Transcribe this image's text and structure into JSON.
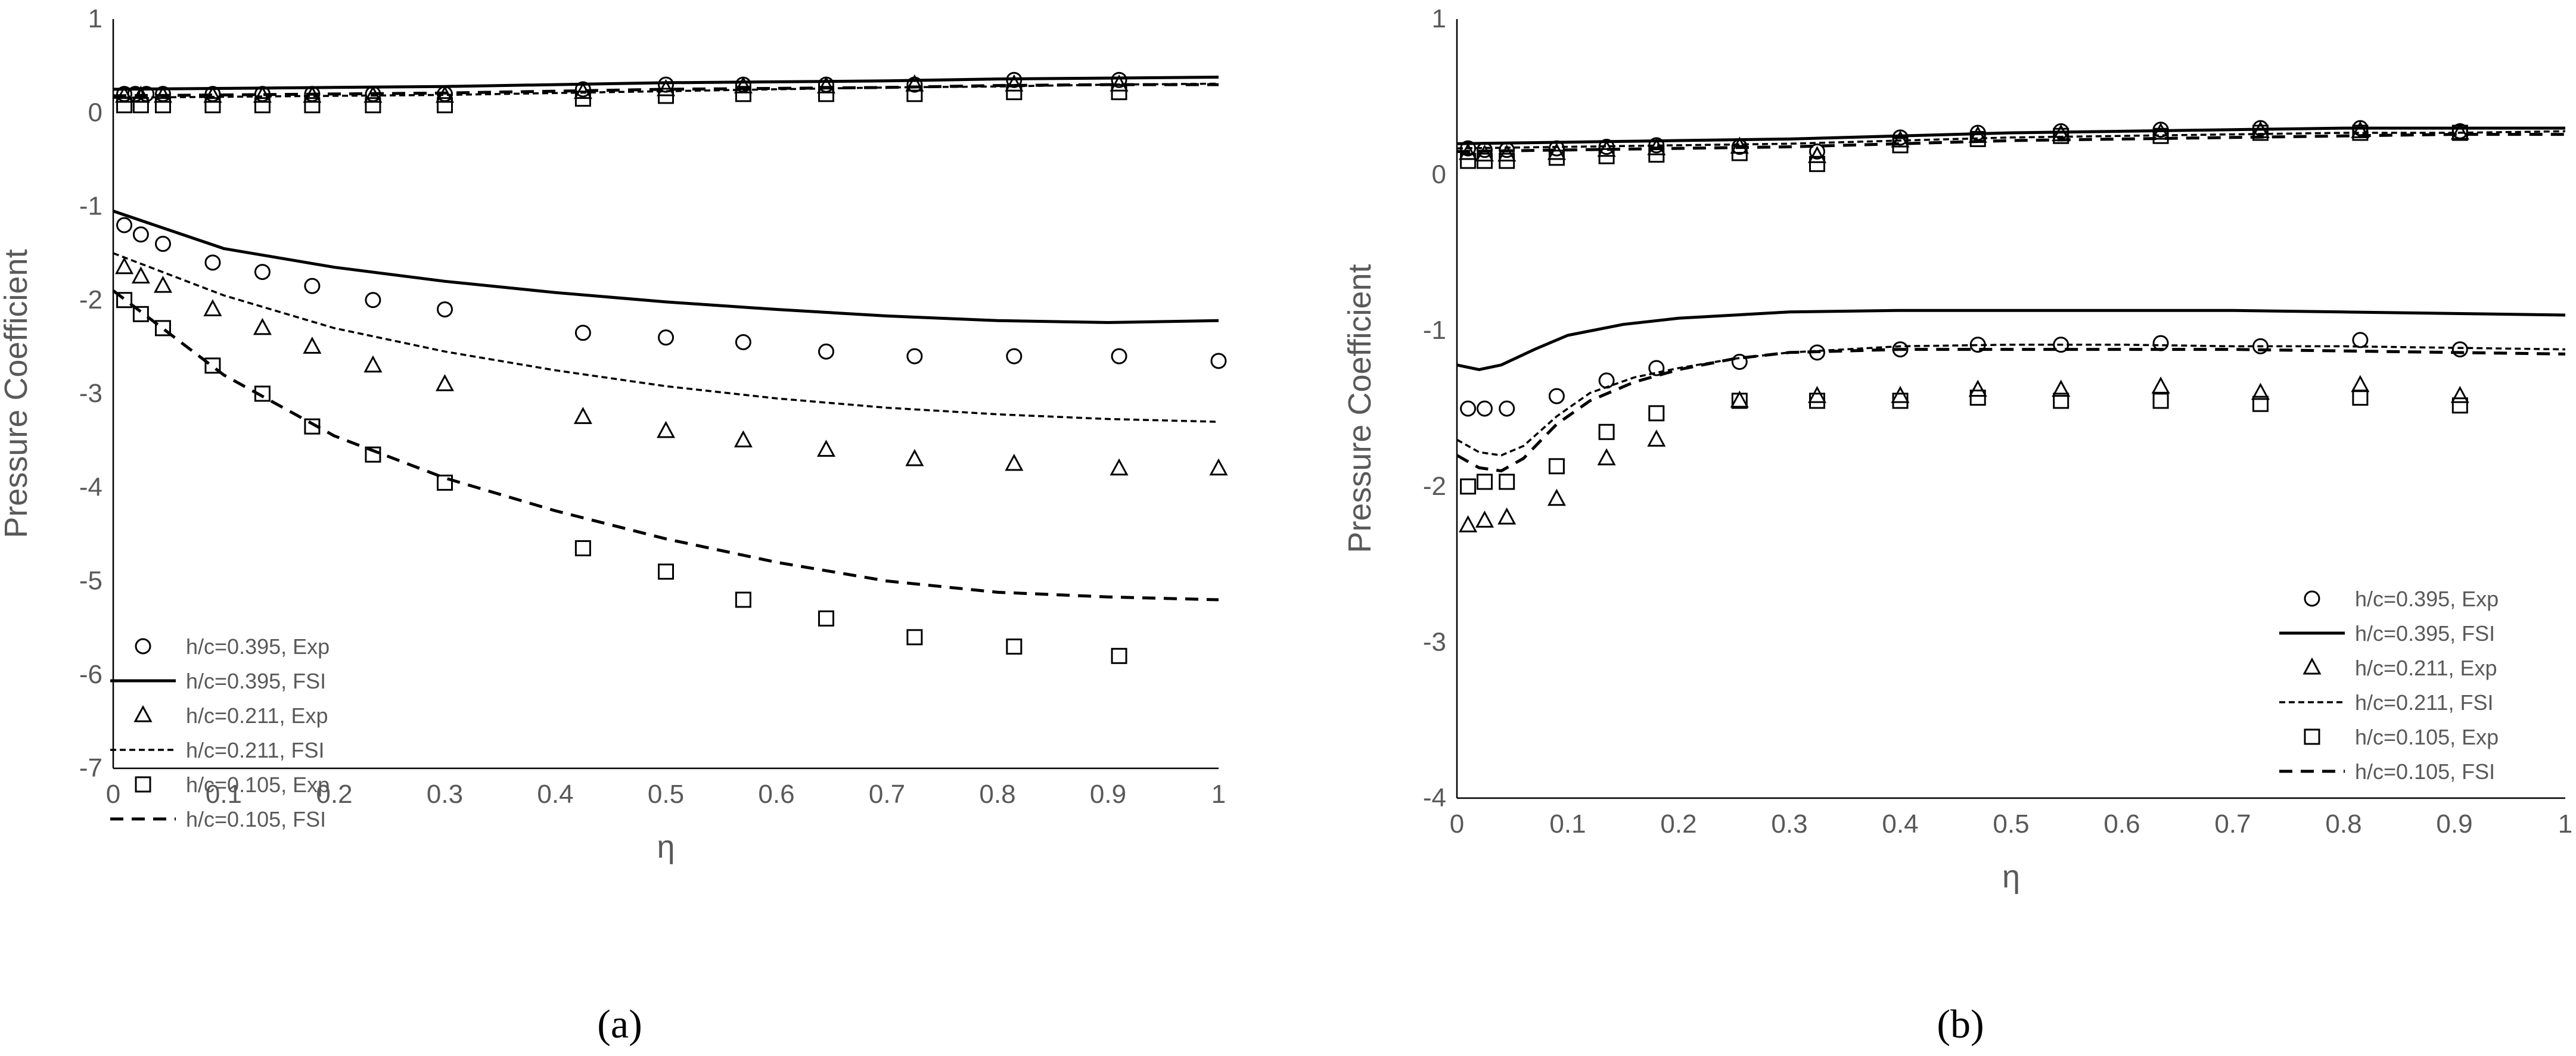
{
  "chart_data": [
    {
      "type": "line",
      "caption": "(a)",
      "xlabel": "η",
      "ylabel": "Pressure Coefficient",
      "xlim": [
        0,
        1
      ],
      "ylim": [
        -7,
        1
      ],
      "xticks": [
        0,
        0.1,
        0.2,
        0.3,
        0.4,
        0.5,
        0.6,
        0.7,
        0.8,
        0.9,
        1
      ],
      "yticks": [
        1,
        0,
        -1,
        -2,
        -3,
        -4,
        -5,
        -6,
        -7
      ],
      "legend_position": "bottom-left",
      "series": [
        {
          "name": "h/c=0.395, Exp",
          "kind": "scatter",
          "marker": "circle",
          "x": [
            0.01,
            0.02,
            0.03,
            0.045,
            0.09,
            0.135,
            0.18,
            0.235,
            0.3,
            0.425,
            0.5,
            0.57,
            0.645,
            0.725,
            0.815,
            0.91,
            1.0
          ],
          "y": [
            0.2,
            0.2,
            0.2,
            0.2,
            0.2,
            0.2,
            0.2,
            0.2,
            0.2,
            0.25,
            0.3,
            0.3,
            0.3,
            0.3,
            0.35,
            0.35,
            null
          ]
        },
        {
          "name": "h/c=0.395, Exp",
          "kind": "scatter",
          "marker": "circle",
          "legend": false,
          "x": [
            0.01,
            0.025,
            0.045,
            0.09,
            0.135,
            0.18,
            0.235,
            0.3,
            0.425,
            0.5,
            0.57,
            0.645,
            0.725,
            0.815,
            0.91,
            1.0
          ],
          "y": [
            -1.2,
            -1.3,
            -1.4,
            -1.6,
            -1.7,
            -1.85,
            -2.0,
            -2.1,
            -2.35,
            -2.4,
            -2.45,
            -2.55,
            -2.6,
            -2.6,
            -2.6,
            -2.65
          ]
        },
        {
          "name": "h/c=0.395, FSI",
          "kind": "line",
          "style": "solid",
          "x": [
            0,
            0.1,
            0.2,
            0.3,
            0.4,
            0.5,
            0.6,
            0.7,
            0.8,
            0.9,
            1.0
          ],
          "y": [
            -1.05,
            -1.45,
            -1.65,
            -1.8,
            -1.92,
            -2.02,
            -2.1,
            -2.17,
            -2.22,
            -2.24,
            -2.22
          ]
        },
        {
          "name": "h/c=0.395, FSI",
          "kind": "line",
          "style": "solid",
          "legend": false,
          "x": [
            0,
            0.1,
            0.2,
            0.3,
            0.4,
            0.5,
            0.6,
            0.7,
            0.8,
            0.9,
            1.0
          ],
          "y": [
            0.25,
            0.26,
            0.27,
            0.28,
            0.3,
            0.32,
            0.33,
            0.34,
            0.36,
            0.37,
            0.38
          ]
        },
        {
          "name": "h/c=0.211, Exp",
          "kind": "scatter",
          "marker": "triangle",
          "x": [
            0.01,
            0.025,
            0.045,
            0.09,
            0.135,
            0.18,
            0.235,
            0.3,
            0.425,
            0.5,
            0.57,
            0.645,
            0.725,
            0.815,
            0.91,
            1.0
          ],
          "y": [
            -1.65,
            -1.75,
            -1.85,
            -2.1,
            -2.3,
            -2.5,
            -2.7,
            -2.9,
            -3.25,
            -3.4,
            -3.5,
            -3.6,
            -3.7,
            -3.75,
            -3.8,
            -3.8
          ]
        },
        {
          "name": "h/c=0.211, Exp",
          "kind": "scatter",
          "marker": "triangle",
          "legend": false,
          "x": [
            0.01,
            0.025,
            0.045,
            0.09,
            0.135,
            0.18,
            0.235,
            0.3,
            0.425,
            0.5,
            0.57,
            0.645,
            0.725,
            0.815,
            0.91
          ],
          "y": [
            0.18,
            0.18,
            0.18,
            0.18,
            0.18,
            0.18,
            0.18,
            0.18,
            0.22,
            0.25,
            0.28,
            0.28,
            0.3,
            0.3,
            0.3
          ]
        },
        {
          "name": "h/c=0.211, FSI",
          "kind": "line",
          "style": "dotted",
          "x": [
            0,
            0.1,
            0.2,
            0.3,
            0.4,
            0.5,
            0.6,
            0.7,
            0.8,
            0.9,
            1.0
          ],
          "y": [
            -1.5,
            -1.95,
            -2.3,
            -2.55,
            -2.75,
            -2.92,
            -3.05,
            -3.15,
            -3.22,
            -3.27,
            -3.3
          ]
        },
        {
          "name": "h/c=0.211, FSI",
          "kind": "line",
          "style": "dotted",
          "legend": false,
          "x": [
            0,
            0.1,
            0.2,
            0.3,
            0.4,
            0.5,
            0.6,
            0.7,
            0.8,
            0.9,
            1.0
          ],
          "y": [
            0.16,
            0.17,
            0.18,
            0.19,
            0.21,
            0.23,
            0.25,
            0.27,
            0.28,
            0.3,
            0.31
          ]
        },
        {
          "name": "h/c=0.105, Exp",
          "kind": "scatter",
          "marker": "square",
          "x": [
            0.01,
            0.025,
            0.045,
            0.09,
            0.135,
            0.18,
            0.235,
            0.3,
            0.425,
            0.5,
            0.57,
            0.645,
            0.725,
            0.815,
            0.91
          ],
          "y": [
            -2.0,
            -2.15,
            -2.3,
            -2.7,
            -3.0,
            -3.35,
            -3.65,
            -3.95,
            -4.65,
            -4.9,
            -5.2,
            -5.4,
            -5.6,
            -5.7,
            -5.8
          ]
        },
        {
          "name": "h/c=0.105, Exp",
          "kind": "scatter",
          "marker": "square",
          "legend": false,
          "x": [
            0.01,
            0.025,
            0.045,
            0.09,
            0.135,
            0.18,
            0.235,
            0.3,
            0.425,
            0.5,
            0.57,
            0.645,
            0.725,
            0.815,
            0.91
          ],
          "y": [
            0.08,
            0.08,
            0.08,
            0.08,
            0.08,
            0.08,
            0.08,
            0.08,
            0.15,
            0.18,
            0.2,
            0.2,
            0.2,
            0.22,
            0.22
          ]
        },
        {
          "name": "h/c=0.105, FSI",
          "kind": "line",
          "style": "dashed",
          "x": [
            0,
            0.1,
            0.2,
            0.3,
            0.4,
            0.5,
            0.6,
            0.7,
            0.8,
            0.9,
            1.0
          ],
          "y": [
            -1.9,
            -2.8,
            -3.45,
            -3.9,
            -4.25,
            -4.55,
            -4.8,
            -5.0,
            -5.12,
            -5.17,
            -5.2
          ]
        },
        {
          "name": "h/c=0.105, FSI",
          "kind": "line",
          "style": "dashed",
          "legend": false,
          "x": [
            0,
            0.1,
            0.2,
            0.3,
            0.4,
            0.5,
            0.6,
            0.7,
            0.8,
            0.9,
            1.0
          ],
          "y": [
            0.18,
            0.19,
            0.2,
            0.21,
            0.23,
            0.25,
            0.26,
            0.27,
            0.29,
            0.3,
            0.3
          ]
        }
      ]
    },
    {
      "type": "line",
      "caption": "(b)",
      "xlabel": "η",
      "ylabel": "Pressure Coefficient",
      "xlim": [
        0,
        1
      ],
      "ylim": [
        -4,
        1
      ],
      "xticks": [
        0,
        0.1,
        0.2,
        0.3,
        0.4,
        0.5,
        0.6,
        0.7,
        0.8,
        0.9,
        1
      ],
      "yticks": [
        1,
        0,
        -1,
        -2,
        -3,
        -4
      ],
      "legend_position": "bottom-right",
      "series": [
        {
          "name": "h/c=0.395, Exp",
          "kind": "scatter",
          "marker": "circle",
          "x": [
            0.01,
            0.025,
            0.045,
            0.09,
            0.135,
            0.18,
            0.255,
            0.325,
            0.4,
            0.47,
            0.545,
            0.635,
            0.725,
            0.815,
            0.905
          ],
          "y": [
            -1.5,
            -1.5,
            -1.5,
            -1.42,
            -1.32,
            -1.24,
            -1.2,
            -1.14,
            -1.12,
            -1.09,
            -1.09,
            -1.08,
            -1.1,
            -1.06,
            -1.12
          ]
        },
        {
          "name": "h/c=0.395, Exp",
          "kind": "scatter",
          "marker": "circle",
          "legend": false,
          "x": [
            0.01,
            0.025,
            0.045,
            0.09,
            0.135,
            0.18,
            0.255,
            0.325,
            0.4,
            0.47,
            0.545,
            0.635,
            0.725,
            0.815,
            0.905
          ],
          "y": [
            0.17,
            0.16,
            0.16,
            0.17,
            0.18,
            0.19,
            0.18,
            0.15,
            0.24,
            0.27,
            0.28,
            0.29,
            0.3,
            0.3,
            0.28
          ]
        },
        {
          "name": "h/c=0.395, FSI",
          "kind": "line",
          "style": "solid",
          "x": [
            0,
            0.02,
            0.04,
            0.07,
            0.1,
            0.15,
            0.2,
            0.3,
            0.4,
            0.5,
            0.6,
            0.7,
            0.8,
            0.9,
            1.0
          ],
          "y": [
            -1.22,
            -1.25,
            -1.22,
            -1.12,
            -1.03,
            -0.96,
            -0.92,
            -0.88,
            -0.87,
            -0.87,
            -0.87,
            -0.87,
            -0.88,
            -0.89,
            -0.9
          ]
        },
        {
          "name": "h/c=0.395, FSI",
          "kind": "line",
          "style": "solid",
          "legend": false,
          "x": [
            0,
            0.1,
            0.2,
            0.3,
            0.4,
            0.5,
            0.6,
            0.7,
            0.8,
            0.9,
            1.0
          ],
          "y": [
            0.2,
            0.21,
            0.22,
            0.23,
            0.25,
            0.27,
            0.28,
            0.29,
            0.3,
            0.3,
            0.3
          ]
        },
        {
          "name": "h/c=0.211, Exp",
          "kind": "scatter",
          "marker": "triangle",
          "x": [
            0.01,
            0.025,
            0.045,
            0.09,
            0.135,
            0.18,
            0.255,
            0.325,
            0.4,
            0.47,
            0.545,
            0.635,
            0.725,
            0.815,
            0.905
          ],
          "y": [
            -2.25,
            -2.22,
            -2.2,
            -2.08,
            -1.82,
            -1.7,
            -1.45,
            -1.42,
            -1.42,
            -1.38,
            -1.38,
            -1.36,
            -1.4,
            -1.35,
            -1.42
          ]
        },
        {
          "name": "h/c=0.211, Exp",
          "kind": "scatter",
          "marker": "triangle",
          "legend": false,
          "x": [
            0.01,
            0.025,
            0.045,
            0.09,
            0.135,
            0.18,
            0.255,
            0.325,
            0.4,
            0.47,
            0.545,
            0.635,
            0.725,
            0.815,
            0.905
          ],
          "y": [
            0.14,
            0.13,
            0.13,
            0.14,
            0.16,
            0.17,
            0.18,
            0.12,
            0.22,
            0.25,
            0.26,
            0.27,
            0.28,
            0.28,
            0.27
          ]
        },
        {
          "name": "h/c=0.211, FSI",
          "kind": "line",
          "style": "dotted",
          "x": [
            0,
            0.02,
            0.04,
            0.06,
            0.09,
            0.12,
            0.16,
            0.2,
            0.25,
            0.3,
            0.4,
            0.5,
            0.6,
            0.7,
            0.8,
            0.9,
            1.0
          ],
          "y": [
            -1.7,
            -1.78,
            -1.8,
            -1.74,
            -1.55,
            -1.4,
            -1.3,
            -1.24,
            -1.18,
            -1.14,
            -1.1,
            -1.09,
            -1.09,
            -1.1,
            -1.1,
            -1.11,
            -1.12
          ]
        },
        {
          "name": "h/c=0.211, FSI",
          "kind": "line",
          "style": "dotted",
          "legend": false,
          "x": [
            0,
            0.1,
            0.2,
            0.3,
            0.4,
            0.5,
            0.6,
            0.7,
            0.8,
            0.9,
            1.0
          ],
          "y": [
            0.17,
            0.18,
            0.19,
            0.2,
            0.22,
            0.24,
            0.25,
            0.26,
            0.27,
            0.27,
            0.28
          ]
        },
        {
          "name": "h/c=0.105, Exp",
          "kind": "scatter",
          "marker": "square",
          "x": [
            0.01,
            0.025,
            0.045,
            0.09,
            0.135,
            0.18,
            0.255,
            0.325,
            0.4,
            0.47,
            0.545,
            0.635,
            0.725,
            0.815,
            0.905
          ],
          "y": [
            -2.0,
            -1.97,
            -1.97,
            -1.87,
            -1.65,
            -1.53,
            -1.45,
            -1.45,
            -1.45,
            -1.43,
            -1.45,
            -1.45,
            -1.47,
            -1.43,
            -1.48
          ]
        },
        {
          "name": "h/c=0.105, Exp",
          "kind": "scatter",
          "marker": "square",
          "legend": false,
          "x": [
            0.01,
            0.025,
            0.045,
            0.09,
            0.135,
            0.18,
            0.255,
            0.325,
            0.4,
            0.47,
            0.545,
            0.635,
            0.725,
            0.815,
            0.905
          ],
          "y": [
            0.09,
            0.09,
            0.09,
            0.11,
            0.12,
            0.13,
            0.14,
            0.07,
            0.19,
            0.23,
            0.25,
            0.25,
            0.27,
            0.27,
            0.27
          ]
        },
        {
          "name": "h/c=0.105, FSI",
          "kind": "line",
          "style": "dashed",
          "x": [
            0,
            0.02,
            0.04,
            0.06,
            0.09,
            0.12,
            0.16,
            0.2,
            0.25,
            0.3,
            0.4,
            0.5,
            0.6,
            0.7,
            0.8,
            0.9,
            1.0
          ],
          "y": [
            -1.8,
            -1.88,
            -1.9,
            -1.82,
            -1.6,
            -1.45,
            -1.33,
            -1.25,
            -1.18,
            -1.14,
            -1.12,
            -1.12,
            -1.12,
            -1.12,
            -1.13,
            -1.14,
            -1.15
          ]
        },
        {
          "name": "h/c=0.105, FSI",
          "kind": "line",
          "style": "dashed",
          "legend": false,
          "x": [
            0,
            0.1,
            0.2,
            0.3,
            0.4,
            0.5,
            0.6,
            0.7,
            0.8,
            0.9,
            1.0
          ],
          "y": [
            0.15,
            0.16,
            0.17,
            0.18,
            0.2,
            0.22,
            0.23,
            0.24,
            0.25,
            0.26,
            0.26
          ]
        }
      ]
    }
  ]
}
